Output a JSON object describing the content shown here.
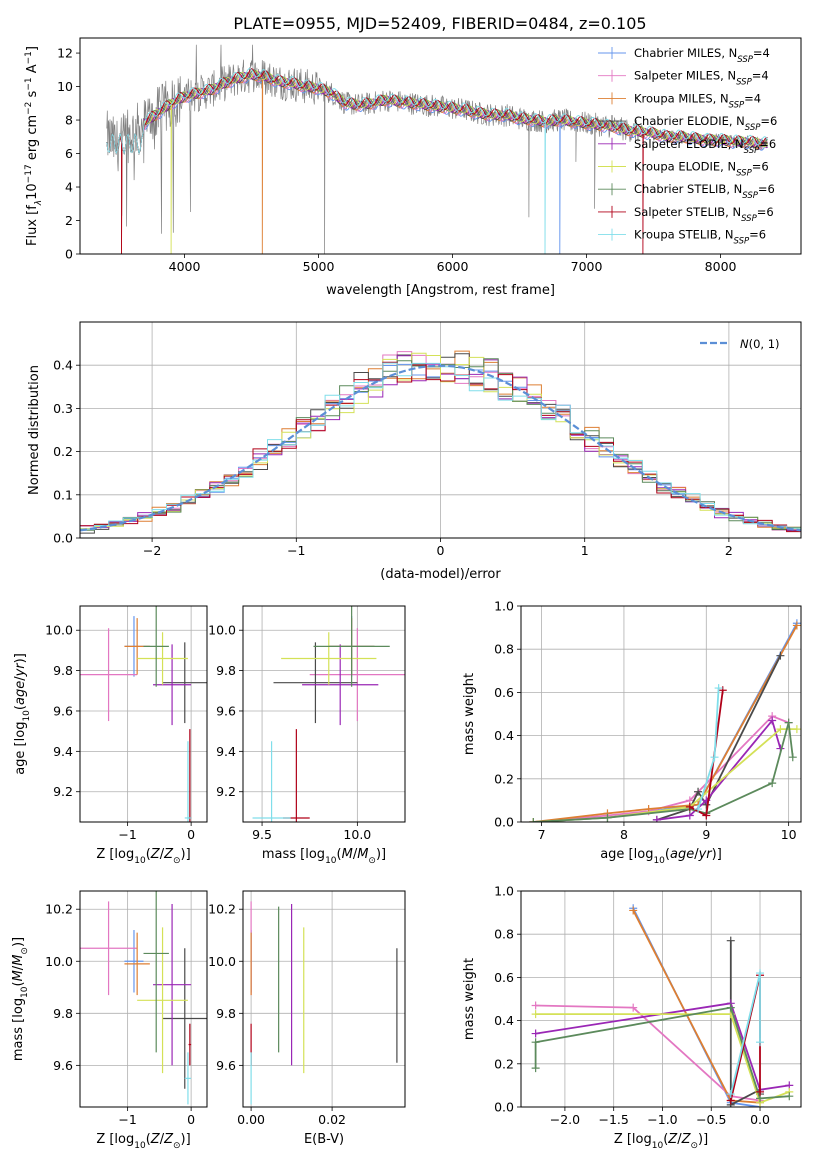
{
  "title": "PLATE=0955, MJD=52409, FIBERID=0484, z=0.105",
  "colors": {
    "Chabrier MILES": "#6495ed",
    "Salpeter MILES": "#e377c2",
    "Kroupa MILES": "#dd7f33",
    "Chabrier ELODIE": "#4a4a4a",
    "Salpeter ELODIE": "#9a27b5",
    "Kroupa ELODIE": "#d4e157",
    "Chabrier STELIB": "#5c8a5c",
    "Salpeter STELIB": "#b00018",
    "Kroupa STELIB": "#80deea",
    "data": "#808080",
    "normal": "#5b8fd6"
  },
  "chart_data": [
    {
      "id": "spectrum",
      "type": "line",
      "title": "PLATE=0955, MJD=52409, FIBERID=0484, z=0.105",
      "xlabel": "wavelength [Angstrom, rest frame]",
      "ylabel_parts": [
        "Flux [f",
        "λ",
        "10",
        "−17",
        " erg cm",
        "−2",
        " s",
        "−1",
        " A",
        "−1",
        "]"
      ],
      "xlim": [
        3220,
        8600
      ],
      "ylim": [
        0,
        12.9
      ],
      "xticks": [
        4000,
        5000,
        6000,
        7000,
        8000
      ],
      "yticks": [
        0,
        2,
        4,
        6,
        8,
        10,
        12
      ],
      "legend_loc": "upper right",
      "legend": [
        {
          "name": "Chabrier MILES",
          "sub": "4"
        },
        {
          "name": "Salpeter MILES",
          "sub": "4"
        },
        {
          "name": "Kroupa MILES",
          "sub": "4"
        },
        {
          "name": "Chabrier ELODIE",
          "sub": "6"
        },
        {
          "name": "Salpeter ELODIE",
          "sub": "6"
        },
        {
          "name": "Kroupa ELODIE",
          "sub": "6"
        },
        {
          "name": "Chabrier STELIB",
          "sub": "6"
        },
        {
          "name": "Salpeter STELIB",
          "sub": "6"
        },
        {
          "name": "Kroupa STELIB",
          "sub": "6"
        }
      ],
      "legend_suffix_prefix": "N",
      "legend_suffix_sub": "SSP",
      "data_x": [
        3420,
        3500,
        3600,
        3700,
        3800,
        3900,
        4000,
        4100,
        4200,
        4300,
        4400,
        4500,
        4600,
        4700,
        4800,
        4900,
        5000,
        5100,
        5200,
        5300,
        5400,
        5500,
        5600,
        5700,
        5800,
        5900,
        6000,
        6100,
        6200,
        6300,
        6400,
        6500,
        6600,
        6700,
        6800,
        6900,
        7000,
        7100,
        7200,
        7300,
        7400,
        7500,
        7600,
        7700,
        7800,
        7900,
        8000,
        8100,
        8200,
        8300
      ],
      "data_y": [
        7.0,
        6.5,
        7.2,
        7.8,
        8.4,
        9.0,
        9.4,
        9.6,
        9.8,
        10.2,
        10.5,
        10.7,
        10.6,
        10.3,
        10.2,
        10.0,
        9.9,
        9.6,
        9.0,
        8.9,
        9.0,
        9.2,
        9.1,
        9.0,
        8.9,
        8.8,
        8.7,
        8.6,
        8.4,
        8.3,
        8.3,
        8.1,
        8.0,
        7.9,
        8.0,
        7.9,
        7.8,
        7.7,
        7.6,
        7.4,
        7.3,
        7.2,
        7.0,
        7.0,
        6.9,
        6.8,
        6.8,
        6.7,
        6.7,
        6.6
      ],
      "notes": "model curves follow the data continuum; vertical spikes in models at 3530, 4580, 6690, 6800, 7420"
    },
    {
      "id": "residuals",
      "type": "line",
      "xlabel": "(data-model)/error",
      "ylabel": "Normed distribution",
      "xlim": [
        -2.5,
        2.5
      ],
      "ylim": [
        0,
        0.5
      ],
      "xticks": [
        -2,
        -1,
        0,
        1,
        2
      ],
      "yticks": [
        0.0,
        0.1,
        0.2,
        0.3,
        0.4
      ],
      "legend_label": "N(0,1)",
      "bin_width": 0.1
    },
    {
      "id": "age_vs_Z",
      "type": "scatter",
      "xlabel": "Z [log10(Z/Z⊙)]",
      "ylabel": "age  [log10(age/yr)]",
      "xlim": [
        -1.75,
        0.25
      ],
      "ylim": [
        9.05,
        10.12
      ],
      "xticks": [
        -1,
        0
      ],
      "yticks": [
        9.2,
        9.4,
        9.6,
        9.8,
        10.0
      ],
      "points": [
        {
          "model": "Chabrier MILES",
          "x": -0.9,
          "y": 9.92,
          "xe": 0.15,
          "ye": 0.15
        },
        {
          "model": "Salpeter MILES",
          "x": -1.3,
          "y": 9.78,
          "xe": 0.45,
          "ye": 0.23
        },
        {
          "model": "Kroupa MILES",
          "x": -0.85,
          "y": 9.92,
          "xe": 0.2,
          "ye": 0.14
        },
        {
          "model": "Chabrier ELODIE",
          "x": -0.1,
          "y": 9.74,
          "xe": 0.35,
          "ye": 0.2
        },
        {
          "model": "Salpeter ELODIE",
          "x": -0.3,
          "y": 9.73,
          "xe": 0.3,
          "ye": 0.2
        },
        {
          "model": "Kroupa ELODIE",
          "x": -0.45,
          "y": 9.86,
          "xe": 0.4,
          "ye": 0.13
        },
        {
          "model": "Chabrier STELIB",
          "x": -0.55,
          "y": 9.92,
          "xe": 0.2,
          "ye": 0.2
        },
        {
          "model": "Salpeter STELIB",
          "x": -0.02,
          "y": 9.07,
          "xe": 0.02,
          "ye": 0.44
        },
        {
          "model": "Kroupa STELIB",
          "x": -0.05,
          "y": 9.07,
          "xe": 0.05,
          "ye": 0.38
        }
      ]
    },
    {
      "id": "age_vs_mass",
      "type": "scatter",
      "xlabel": "mass [log10(M/M⊙)]",
      "xlim": [
        9.4,
        10.25
      ],
      "ylim": [
        9.05,
        10.12
      ],
      "xticks": [
        9.5,
        10.0
      ],
      "yticks": [
        9.2,
        9.4,
        9.6,
        9.8,
        10.0
      ],
      "points": [
        {
          "model": "Chabrier MILES",
          "x": 9.97,
          "y": 9.92,
          "xe": 0.12,
          "ye": 0.15
        },
        {
          "model": "Salpeter MILES",
          "x": 10.0,
          "y": 9.78,
          "xe": 0.25,
          "ye": 0.23
        },
        {
          "model": "Kroupa MILES",
          "x": 9.97,
          "y": 9.92,
          "xe": 0.12,
          "ye": 0.14
        },
        {
          "model": "Chabrier ELODIE",
          "x": 9.78,
          "y": 9.74,
          "xe": 0.22,
          "ye": 0.2
        },
        {
          "model": "Salpeter ELODIE",
          "x": 9.91,
          "y": 9.73,
          "xe": 0.2,
          "ye": 0.2
        },
        {
          "model": "Kroupa ELODIE",
          "x": 9.85,
          "y": 9.86,
          "xe": 0.25,
          "ye": 0.13
        },
        {
          "model": "Chabrier STELIB",
          "x": 9.97,
          "y": 9.92,
          "xe": 0.2,
          "ye": 0.2
        },
        {
          "model": "Salpeter STELIB",
          "x": 9.68,
          "y": 9.07,
          "xe": 0.07,
          "ye": 0.44
        },
        {
          "model": "Kroupa STELIB",
          "x": 9.55,
          "y": 9.07,
          "xe": 0.1,
          "ye": 0.38
        }
      ]
    },
    {
      "id": "massweight_vs_age",
      "type": "line",
      "xlabel": "age  [log10(age/yr)]",
      "ylabel": "mass weight",
      "xlim": [
        6.75,
        10.15
      ],
      "ylim": [
        0,
        1
      ],
      "xticks": [
        7,
        8,
        9,
        10
      ],
      "yticks": [
        0.0,
        0.2,
        0.4,
        0.6,
        0.8,
        1.0
      ],
      "series": [
        {
          "name": "Chabrier MILES",
          "x": [
            6.9,
            7.8,
            8.9,
            10.1
          ],
          "y": [
            0.0,
            0.02,
            0.08,
            0.92
          ]
        },
        {
          "name": "Salpeter MILES",
          "x": [
            6.9,
            7.8,
            8.3,
            8.8,
            9.8,
            10.0
          ],
          "y": [
            0.0,
            0.03,
            0.05,
            0.1,
            0.49,
            0.46
          ]
        },
        {
          "name": "Kroupa MILES",
          "x": [
            6.9,
            7.8,
            8.3,
            8.9,
            10.1
          ],
          "y": [
            0.0,
            0.04,
            0.06,
            0.08,
            0.91
          ]
        },
        {
          "name": "Chabrier ELODIE",
          "x": [
            8.4,
            8.8,
            8.9,
            9.0,
            9.9
          ],
          "y": [
            0.01,
            0.06,
            0.14,
            0.08,
            0.77
          ]
        },
        {
          "name": "Salpeter ELODIE",
          "x": [
            8.4,
            8.8,
            9.0,
            9.8,
            9.9
          ],
          "y": [
            0.01,
            0.03,
            0.1,
            0.47,
            0.34
          ]
        },
        {
          "name": "Kroupa ELODIE",
          "x": [
            6.9,
            7.8,
            8.8,
            9.9,
            10.1
          ],
          "y": [
            0.0,
            0.02,
            0.07,
            0.43,
            0.43
          ]
        },
        {
          "name": "Chabrier STELIB",
          "x": [
            6.9,
            7.8,
            8.8,
            9.0,
            9.8,
            10.0,
            10.05
          ],
          "y": [
            0.0,
            0.02,
            0.06,
            0.04,
            0.18,
            0.46,
            0.3
          ]
        },
        {
          "name": "Salpeter STELIB",
          "x": [
            8.8,
            9.0,
            9.2
          ],
          "y": [
            0.07,
            0.03,
            0.61
          ]
        },
        {
          "name": "Kroupa STELIB",
          "x": [
            8.9,
            9.1,
            9.15
          ],
          "y": [
            0.06,
            0.3,
            0.62
          ]
        }
      ]
    },
    {
      "id": "mass_vs_Z",
      "type": "scatter",
      "xlabel": "Z [log10(Z/Z⊙)]",
      "ylabel": "mass [log10(M/M⊙)]",
      "xlim": [
        -1.75,
        0.25
      ],
      "ylim": [
        9.44,
        10.27
      ],
      "xticks": [
        -1,
        0
      ],
      "yticks": [
        9.6,
        9.8,
        10.0,
        10.2
      ],
      "points": [
        {
          "model": "Chabrier MILES",
          "x": -0.9,
          "y": 10.0,
          "xe": 0.15,
          "ye": 0.12
        },
        {
          "model": "Salpeter MILES",
          "x": -1.3,
          "y": 10.05,
          "xe": 0.45,
          "ye": 0.18
        },
        {
          "model": "Kroupa MILES",
          "x": -0.85,
          "y": 9.99,
          "xe": 0.2,
          "ye": 0.12
        },
        {
          "model": "Chabrier ELODIE",
          "x": -0.1,
          "y": 9.78,
          "xe": 0.35,
          "ye": 0.27
        },
        {
          "model": "Salpeter ELODIE",
          "x": -0.3,
          "y": 9.91,
          "xe": 0.3,
          "ye": 0.31
        },
        {
          "model": "Kroupa ELODIE",
          "x": -0.45,
          "y": 9.85,
          "xe": 0.4,
          "ye": 0.28
        },
        {
          "model": "Chabrier STELIB",
          "x": -0.55,
          "y": 10.03,
          "xe": 0.2,
          "ye": 0.38
        },
        {
          "model": "Salpeter STELIB",
          "x": -0.02,
          "y": 9.68,
          "xe": 0.02,
          "ye": 0.08
        },
        {
          "model": "Kroupa STELIB",
          "x": -0.05,
          "y": 9.55,
          "xe": 0.05,
          "ye": 0.1
        }
      ]
    },
    {
      "id": "mass_vs_ebv",
      "type": "scatter",
      "xlabel": "E(B-V)",
      "xlim": [
        -0.002,
        0.038
      ],
      "ylim": [
        9.44,
        10.27
      ],
      "xticks": [
        0.0,
        0.02
      ],
      "yticks": [
        9.6,
        9.8,
        10.0,
        10.2
      ],
      "points": [
        {
          "model": "Chabrier MILES",
          "x": 0.0,
          "y": 10.0,
          "ye": 0.12
        },
        {
          "model": "Salpeter MILES",
          "x": 0.0,
          "y": 10.05,
          "ye": 0.18
        },
        {
          "model": "Kroupa MILES",
          "x": 0.0,
          "y": 9.99,
          "ye": 0.12
        },
        {
          "model": "Chabrier ELODIE",
          "x": 0.036,
          "y": 9.83,
          "ye": 0.22
        },
        {
          "model": "Salpeter ELODIE",
          "x": 0.01,
          "y": 9.91,
          "ye": 0.31
        },
        {
          "model": "Kroupa ELODIE",
          "x": 0.013,
          "y": 9.85,
          "ye": 0.28
        },
        {
          "model": "Chabrier STELIB",
          "x": 0.0068,
          "y": 9.93,
          "ye": 0.28
        },
        {
          "model": "Salpeter STELIB",
          "x": 0.0,
          "y": 9.68,
          "ye": 0.08
        },
        {
          "model": "Kroupa STELIB",
          "x": 0.0,
          "y": 9.55,
          "ye": 0.1
        }
      ]
    },
    {
      "id": "massweight_vs_Z",
      "type": "line",
      "xlabel": "Z [log10(Z/Z⊙)]",
      "ylabel": "mass weight",
      "xlim": [
        -2.45,
        0.42
      ],
      "ylim": [
        0,
        1
      ],
      "xticks": [
        -2.0,
        -1.5,
        -1.0,
        -0.5,
        0.0
      ],
      "yticks": [
        0.0,
        0.2,
        0.4,
        0.6,
        0.8,
        1.0
      ],
      "series": [
        {
          "name": "Chabrier MILES",
          "x": [
            -1.3,
            -0.3,
            0.0
          ],
          "y": [
            0.92,
            0.02,
            0.0
          ]
        },
        {
          "name": "Salpeter MILES",
          "x": [
            -2.3,
            -1.3,
            -0.3,
            0.0
          ],
          "y": [
            0.47,
            0.46,
            0.05,
            0.03
          ]
        },
        {
          "name": "Kroupa MILES",
          "x": [
            -1.3,
            -0.3,
            0.0
          ],
          "y": [
            0.91,
            0.03,
            0.02
          ]
        },
        {
          "name": "Chabrier ELODIE",
          "x": [
            -0.3,
            -0.3,
            0.0,
            0.0
          ],
          "y": [
            0.77,
            0.01,
            0.08,
            0.06
          ]
        },
        {
          "name": "Salpeter ELODIE",
          "x": [
            -2.3,
            -0.3,
            0.0,
            0.3
          ],
          "y": [
            0.34,
            0.48,
            0.08,
            0.1
          ]
        },
        {
          "name": "Kroupa ELODIE",
          "x": [
            -2.3,
            -0.3,
            0.0,
            0.3
          ],
          "y": [
            0.43,
            0.43,
            0.02,
            0.07
          ]
        },
        {
          "name": "Chabrier STELIB",
          "x": [
            -2.3,
            -2.3,
            -0.3,
            0.0,
            0.3
          ],
          "y": [
            0.18,
            0.3,
            0.46,
            0.04,
            0.05
          ]
        },
        {
          "name": "Salpeter STELIB",
          "x": [
            -0.3,
            0.0,
            0.0
          ],
          "y": [
            0.03,
            0.61,
            0.07
          ]
        },
        {
          "name": "Kroupa STELIB",
          "x": [
            -0.3,
            0.0,
            0.0
          ],
          "y": [
            0.06,
            0.62,
            0.3
          ]
        }
      ]
    }
  ]
}
